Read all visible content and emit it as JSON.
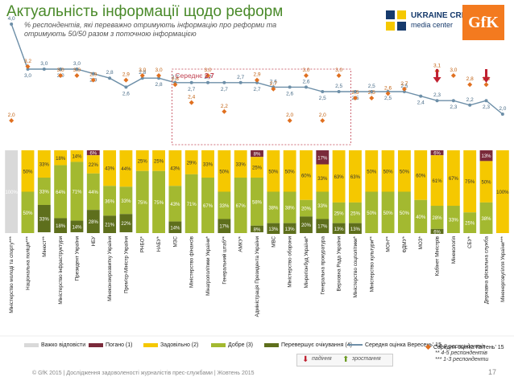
{
  "title": "Актуальність інформації щодо реформ",
  "subtitle_line1": "% респондентів, які переважно отримують інформацію про реформи та",
  "subtitle_line2": "отримують 50/50 разом з поточною інформацією",
  "logo": {
    "uc_line1": "UKRAINE CRISIS",
    "uc_line2": "media center",
    "gfk": "GfK"
  },
  "footer": "© GfK 2015 | Дослідження задоволеності журналістів прес-службами | Жовтень 2015",
  "page_number": "17",
  "notes": [
    "* 6-9 респондентів",
    "** 4-5 респондентів",
    "*** 1-3 респонденти"
  ],
  "trend_legend": {
    "down": "падіння",
    "up": "зростання"
  },
  "colors": {
    "hard": "#d9d9d9",
    "bad": "#7a2a3a",
    "satisfactory": "#f5c800",
    "good": "#a3b930",
    "exceeded": "#5e6f1c",
    "autumn_line": "#6d8fa8",
    "spring_marker": "#e07020",
    "bad_text": "#c00040"
  },
  "chart_data": {
    "type": "bar",
    "stacked": true,
    "title": "Актуальність інформації щодо реформ",
    "categories": [
      "Міністерство молоді та спорту***",
      "Національна поліція***",
      "Мінюст**",
      "Міністерство інфраструктури",
      "Президент України",
      "НБУ",
      "Мінекономрозвитку України",
      "Прем'єр-Міністр України",
      "РНБО*",
      "НАБУ*",
      "МЗС",
      "Міністерство фінансів",
      "Мінагрополітики України*",
      "Генеральний штаб**",
      "АМКУ*",
      "Адміністрація Президента України",
      "МВС",
      "Міністерство оборони",
      "Мінрегіонбуд України*",
      "Генеральна прокуратура",
      "Верховна Рада України",
      "Міністерство соцполітики*",
      "Міністерство культури**",
      "МОН**",
      "ФДМУ*",
      "МОЗ*",
      "Кабінет Міністрів",
      "Мінекологія",
      "СБУ*",
      "Державна фіскальна служба",
      "Міненерговугілля України***"
    ],
    "series": [
      {
        "name": "Важко відповісти",
        "key": "hard",
        "values": [
          100,
          0,
          0,
          0,
          0,
          0,
          0,
          0,
          0,
          0,
          0,
          0,
          0,
          0,
          0,
          0,
          0,
          0,
          0,
          0,
          0,
          0,
          0,
          0,
          0,
          0,
          0,
          0,
          0,
          0,
          0
        ]
      },
      {
        "name": "Погано (1)",
        "key": "bad",
        "values": [
          0,
          0,
          0,
          0,
          0,
          6,
          0,
          0,
          0,
          0,
          0,
          0,
          0,
          0,
          0,
          8,
          0,
          0,
          0,
          17,
          0,
          0,
          0,
          0,
          0,
          0,
          6,
          0,
          0,
          13,
          0
        ]
      },
      {
        "name": "Задовільно (2)",
        "key": "satisfactory",
        "values": [
          0,
          50,
          33,
          18,
          14,
          22,
          43,
          44,
          25,
          25,
          43,
          29,
          33,
          50,
          33,
          25,
          50,
          50,
          60,
          33,
          63,
          63,
          50,
          50,
          50,
          60,
          61,
          67,
          75,
          50,
          100
        ]
      },
      {
        "name": "Добре (3)",
        "key": "good",
        "values": [
          0,
          50,
          33,
          64,
          71,
          44,
          36,
          33,
          75,
          75,
          43,
          71,
          67,
          33,
          67,
          58,
          38,
          38,
          20,
          33,
          25,
          25,
          50,
          50,
          50,
          40,
          28,
          33,
          25,
          38,
          0
        ]
      },
      {
        "name": "Перевершує очікування (4)",
        "key": "exceeded",
        "values": [
          0,
          0,
          33,
          18,
          14,
          28,
          21,
          22,
          0,
          0,
          14,
          0,
          0,
          17,
          0,
          8,
          13,
          13,
          20,
          17,
          13,
          13,
          0,
          0,
          0,
          0,
          6,
          0,
          0,
          0,
          0
        ]
      }
    ],
    "autumn_avg": {
      "name": "Середня оцінка Вересень' 15",
      "values": [
        4.0,
        3.0,
        3.0,
        3.0,
        3.0,
        2.9,
        2.8,
        2.6,
        2.8,
        2.8,
        2.7,
        2.7,
        2.7,
        2.7,
        2.7,
        2.7,
        2.6,
        2.6,
        2.6,
        2.5,
        2.5,
        2.5,
        2.5,
        2.5,
        2.5,
        2.4,
        2.3,
        2.3,
        2.2,
        2.3,
        2.0
      ]
    },
    "spring_avg": {
      "name": "Середня оцінка Квітень' 15",
      "values": [
        2.0,
        3.2,
        null,
        3.0,
        3.0,
        2.9,
        null,
        2.9,
        3.0,
        3.0,
        2.8,
        2.4,
        3.0,
        2.2,
        null,
        2.9,
        2.7,
        2.0,
        3.0,
        2.0,
        3.0,
        2.5,
        2.5,
        2.6,
        2.7,
        null,
        3.1,
        3.0,
        2.8,
        2.8,
        null
      ]
    },
    "overall_avg": {
      "label": "Середнє",
      "value": "2,7"
    },
    "trend_down": [
      26,
      29
    ],
    "ylim": [
      0,
      100
    ],
    "xlabel": "",
    "ylabel": ""
  }
}
